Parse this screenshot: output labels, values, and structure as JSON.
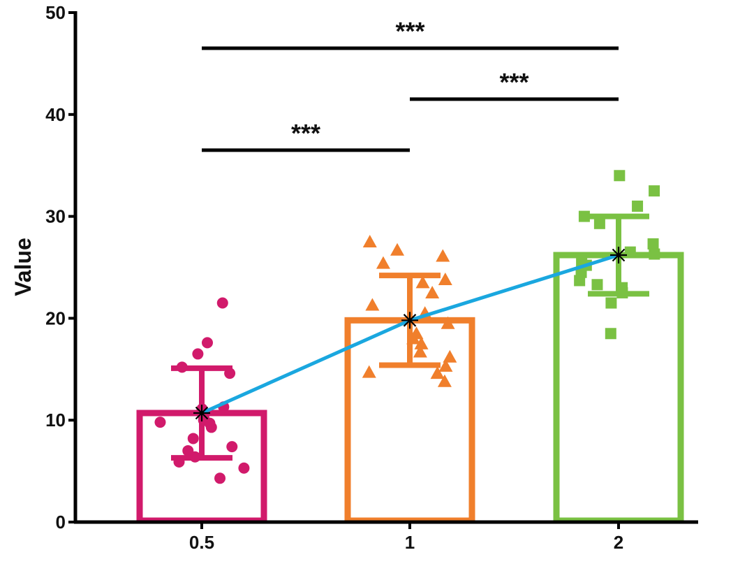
{
  "chart_data": {
    "type": "bar",
    "title": "",
    "xlabel": "",
    "ylabel": "Value",
    "ylim": [
      0,
      50
    ],
    "yticks": [
      "0",
      "10",
      "20",
      "30",
      "40",
      "50"
    ],
    "ytick_values": [
      0,
      10,
      20,
      30,
      40,
      50
    ],
    "categories": [
      "0.5",
      "1",
      "2"
    ],
    "colors": [
      "#d11a6b",
      "#f07f2c",
      "#7ac143"
    ],
    "mean_line_color": "#1aa7df",
    "marker_shapes": [
      "circle",
      "triangle",
      "square"
    ],
    "means": [
      10.7,
      19.8,
      26.2
    ],
    "sd": [
      4.4,
      4.4,
      3.8
    ],
    "points": [
      [
        21.5,
        17.6,
        16.5,
        15.2,
        14.6,
        11.3,
        11.1,
        10.3,
        10.0,
        9.8,
        9.7,
        9.3,
        8.2,
        7.4,
        7.0,
        6.4,
        5.9,
        5.3,
        4.3
      ],
      [
        27.5,
        26.7,
        26.1,
        25.4,
        23.8,
        23.5,
        22.5,
        21.3,
        20.5,
        19.5,
        18.5,
        18.0,
        17.5,
        16.7,
        16.2,
        15.3,
        14.7,
        14.6,
        13.8
      ],
      [
        34.0,
        32.5,
        31.0,
        30.0,
        29.3,
        27.3,
        26.5,
        26.3,
        25.6,
        25.2,
        24.5,
        23.7,
        23.3,
        23.0,
        22.5,
        21.5,
        18.5
      ]
    ],
    "significance": [
      {
        "from": 0,
        "to": 2,
        "y": 46.5,
        "label": "***"
      },
      {
        "from": 1,
        "to": 2,
        "y": 41.5,
        "label": "***"
      },
      {
        "from": 0,
        "to": 1,
        "y": 36.5,
        "label": "***"
      }
    ]
  }
}
